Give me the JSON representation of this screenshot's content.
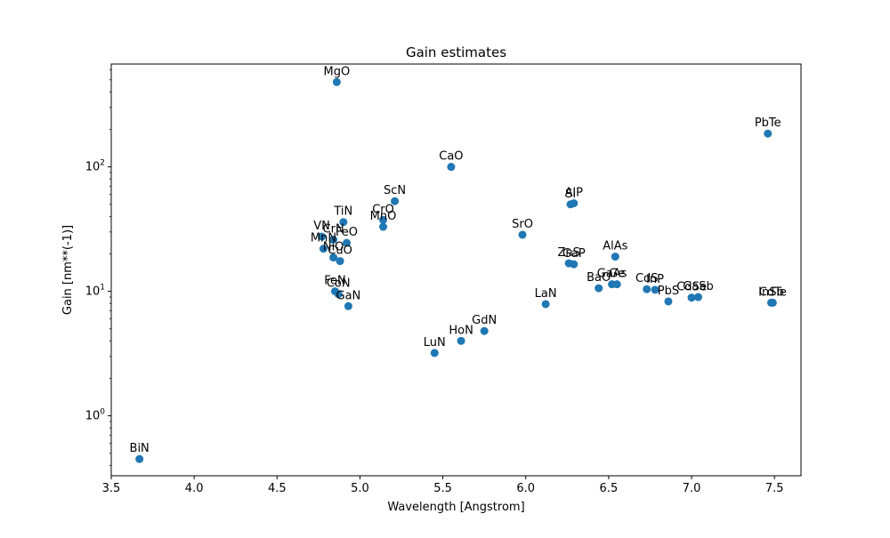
{
  "chart_data": {
    "type": "scatter",
    "title": "Gain estimates",
    "xlabel": "Wavelength [Angstrom]",
    "ylabel": "Gain [nm**(-1)]",
    "xscale": "linear",
    "yscale": "log",
    "xlim": [
      3.5,
      7.66
    ],
    "ylim": [
      0.33,
      670
    ],
    "grid": false,
    "marker_color": "#1f77b4",
    "x_ticks": [
      {
        "value": 3.5,
        "label": "3.5"
      },
      {
        "value": 4.0,
        "label": "4.0"
      },
      {
        "value": 4.5,
        "label": "4.5"
      },
      {
        "value": 5.0,
        "label": "5.0"
      },
      {
        "value": 5.5,
        "label": "5.5"
      },
      {
        "value": 6.0,
        "label": "6.0"
      },
      {
        "value": 6.5,
        "label": "6.5"
      },
      {
        "value": 7.0,
        "label": "7.0"
      },
      {
        "value": 7.5,
        "label": "7.5"
      }
    ],
    "y_major_ticks": [
      1,
      10,
      100
    ],
    "points": [
      {
        "label": "BiN",
        "x": 3.67,
        "y": 0.45
      },
      {
        "label": "MgO",
        "x": 4.86,
        "y": 480
      },
      {
        "label": "VN",
        "x": 4.77,
        "y": 27.5
      },
      {
        "label": "MnN",
        "x": 4.78,
        "y": 22
      },
      {
        "label": "CrN",
        "x": 4.84,
        "y": 26
      },
      {
        "label": "TiN",
        "x": 4.9,
        "y": 36
      },
      {
        "label": "FeO",
        "x": 4.92,
        "y": 24.5
      },
      {
        "label": "NiO",
        "x": 4.84,
        "y": 18.7
      },
      {
        "label": "CuO",
        "x": 4.88,
        "y": 17.5
      },
      {
        "label": "FeN",
        "x": 4.85,
        "y": 10
      },
      {
        "label": "CoN",
        "x": 4.87,
        "y": 9.5
      },
      {
        "label": "GaN",
        "x": 4.93,
        "y": 7.6
      },
      {
        "label": "ScN",
        "x": 5.21,
        "y": 53
      },
      {
        "label": "CrO",
        "x": 5.14,
        "y": 37.5
      },
      {
        "label": "MnO",
        "x": 5.14,
        "y": 33
      },
      {
        "label": "CaO",
        "x": 5.55,
        "y": 100
      },
      {
        "label": "LuN",
        "x": 5.45,
        "y": 3.2
      },
      {
        "label": "HoN",
        "x": 5.61,
        "y": 4
      },
      {
        "label": "GdN",
        "x": 5.75,
        "y": 4.8
      },
      {
        "label": "SrO",
        "x": 5.98,
        "y": 28.5
      },
      {
        "label": "LaN",
        "x": 6.12,
        "y": 7.9
      },
      {
        "label": "Si",
        "x": 6.27,
        "y": 50
      },
      {
        "label": "AlP",
        "x": 6.29,
        "y": 51
      },
      {
        "label": "ZnS",
        "x": 6.26,
        "y": 16.8
      },
      {
        "label": "GaP",
        "x": 6.29,
        "y": 16.5
      },
      {
        "label": "AlAs",
        "x": 6.54,
        "y": 19
      },
      {
        "label": "BaO",
        "x": 6.44,
        "y": 10.6
      },
      {
        "label": "GaAs",
        "x": 6.52,
        "y": 11.4
      },
      {
        "label": "Ge",
        "x": 6.55,
        "y": 11.4
      },
      {
        "label": "CdS",
        "x": 6.73,
        "y": 10.4
      },
      {
        "label": "InP",
        "x": 6.78,
        "y": 10.3
      },
      {
        "label": "PbS",
        "x": 6.86,
        "y": 8.3
      },
      {
        "label": "CdSe",
        "x": 7.0,
        "y": 8.9
      },
      {
        "label": "GaSb",
        "x": 7.04,
        "y": 9
      },
      {
        "label": "PbTe",
        "x": 7.46,
        "y": 185
      },
      {
        "label": "InSb",
        "x": 7.48,
        "y": 8.1
      },
      {
        "label": "CdTe",
        "x": 7.49,
        "y": 8.1
      }
    ]
  }
}
